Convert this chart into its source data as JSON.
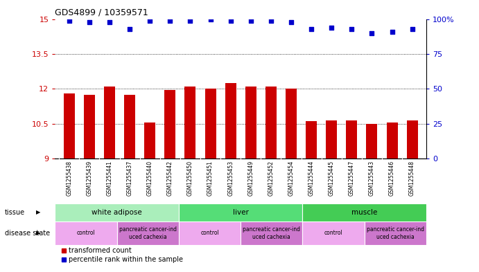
{
  "title": "GDS4899 / 10359571",
  "samples": [
    "GSM1255438",
    "GSM1255439",
    "GSM1255441",
    "GSM1255437",
    "GSM1255440",
    "GSM1255442",
    "GSM1255450",
    "GSM1255451",
    "GSM1255453",
    "GSM1255449",
    "GSM1255452",
    "GSM1255454",
    "GSM1255444",
    "GSM1255445",
    "GSM1255447",
    "GSM1255443",
    "GSM1255446",
    "GSM1255448"
  ],
  "transformed_count": [
    11.8,
    11.75,
    12.1,
    11.75,
    10.55,
    11.95,
    12.1,
    12.0,
    12.25,
    12.1,
    12.1,
    12.0,
    10.6,
    10.65,
    10.65,
    10.5,
    10.55,
    10.65
  ],
  "percentile_rank": [
    99,
    98,
    98,
    93,
    99,
    99,
    99,
    100,
    99,
    99,
    99,
    98,
    93,
    94,
    93,
    90,
    91,
    93
  ],
  "bar_color": "#cc0000",
  "dot_color": "#0000cc",
  "ylim_left": [
    9,
    15
  ],
  "ylim_right": [
    0,
    100
  ],
  "yticks_left": [
    9,
    10.5,
    12,
    13.5,
    15
  ],
  "ytick_labels_left": [
    "9",
    "10.5",
    "12",
    "13.5",
    "15"
  ],
  "yticks_right": [
    0,
    25,
    50,
    75,
    100
  ],
  "ytick_labels_right": [
    "0",
    "25",
    "50",
    "75",
    "100%"
  ],
  "hgrid_lines": [
    10.5,
    12.0,
    13.5
  ],
  "tissue_groups": [
    {
      "label": "white adipose",
      "start": 0,
      "end": 6,
      "color": "#aaeebb"
    },
    {
      "label": "liver",
      "start": 6,
      "end": 12,
      "color": "#55dd77"
    },
    {
      "label": "muscle",
      "start": 12,
      "end": 18,
      "color": "#44cc55"
    }
  ],
  "disease_groups": [
    {
      "label": "control",
      "start": 0,
      "end": 3,
      "color": "#eeaaee"
    },
    {
      "label": "pancreatic cancer-ind\nuced cachexia",
      "start": 3,
      "end": 6,
      "color": "#cc77cc"
    },
    {
      "label": "control",
      "start": 6,
      "end": 9,
      "color": "#eeaaee"
    },
    {
      "label": "pancreatic cancer-ind\nuced cachexia",
      "start": 9,
      "end": 12,
      "color": "#cc77cc"
    },
    {
      "label": "control",
      "start": 12,
      "end": 15,
      "color": "#eeaaee"
    },
    {
      "label": "pancreatic cancer-ind\nuced cachexia",
      "start": 15,
      "end": 18,
      "color": "#cc77cc"
    }
  ],
  "legend_items": [
    {
      "label": "transformed count",
      "color": "#cc0000"
    },
    {
      "label": "percentile rank within the sample",
      "color": "#0000cc"
    }
  ],
  "xtick_bg_color": "#cccccc",
  "background_color": "#ffffff",
  "tick_label_color_left": "#cc0000",
  "tick_label_color_right": "#0000cc"
}
